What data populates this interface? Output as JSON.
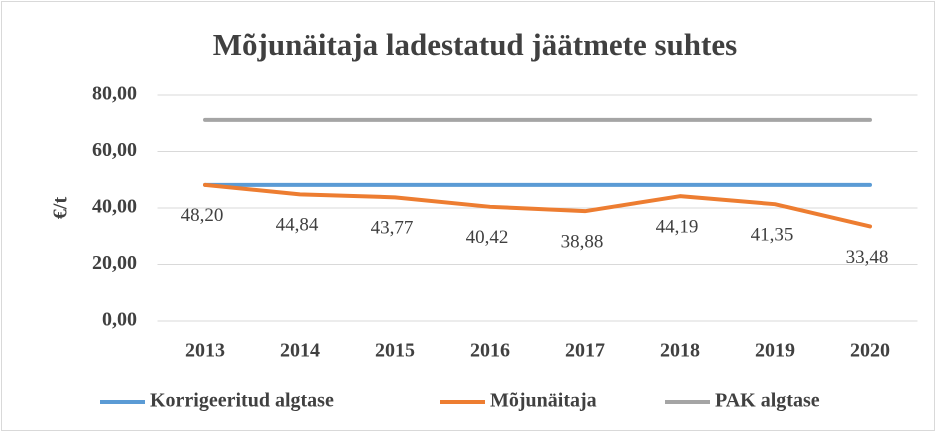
{
  "chart_data": {
    "type": "line",
    "title": "Mõjunäitaja ladestatud jäätmete suhtes",
    "y_label": "€/t",
    "categories": [
      "2013",
      "2014",
      "2015",
      "2016",
      "2017",
      "2018",
      "2019",
      "2020"
    ],
    "series": [
      {
        "name": "Korrigeeritud algtase",
        "color": "#5b9bd5",
        "values": [
          48.2,
          48.2,
          48.2,
          48.2,
          48.2,
          48.2,
          48.2,
          48.2
        ]
      },
      {
        "name": "Mõjunäitaja",
        "color": "#ed7d31",
        "values": [
          48.2,
          44.84,
          43.77,
          40.42,
          38.88,
          44.19,
          41.35,
          33.48
        ],
        "value_labels": [
          "48,20",
          "44,84",
          "43,77",
          "40,42",
          "38,88",
          "44,19",
          "41,35",
          "33,48"
        ]
      },
      {
        "name": "PAK algtase",
        "color": "#a5a5a5",
        "values": [
          71.2,
          71.2,
          71.2,
          71.2,
          71.2,
          71.2,
          71.2,
          71.2
        ]
      }
    ],
    "ylim": [
      0,
      80
    ],
    "yticks": [
      {
        "value": 0,
        "label": "0,00"
      },
      {
        "value": 20,
        "label": "20,00"
      },
      {
        "value": 40,
        "label": "40,00"
      },
      {
        "value": 60,
        "label": "60,00"
      },
      {
        "value": 80,
        "label": "80,00"
      }
    ],
    "grid": true,
    "legend": "bottom"
  }
}
